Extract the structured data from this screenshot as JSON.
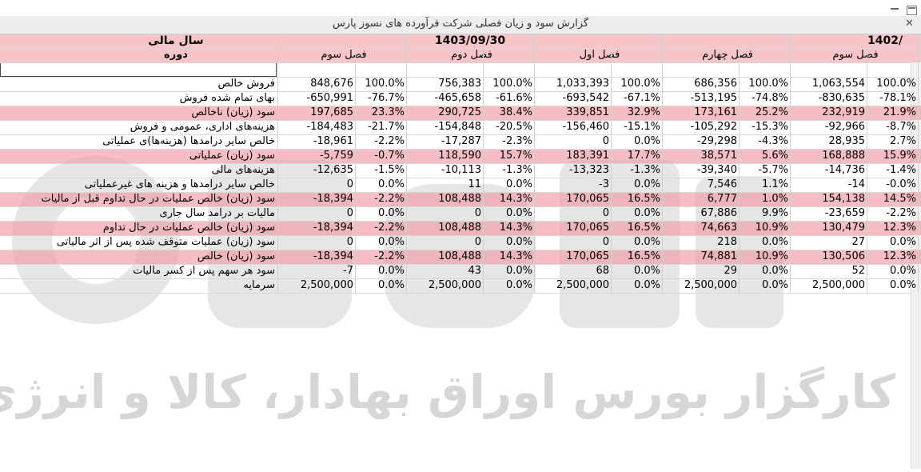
{
  "window": {
    "title": "گزارش سود و زیان فصلی شرکت فرآورده های نسوز پارس"
  },
  "header": {
    "fiscal_year_label": "سال مالی",
    "period_label": "دوره",
    "year_1403": "1403/09/30",
    "year_1402": "1402/",
    "periods": [
      "فصل سوم",
      "فصل دوم",
      "فصل اول",
      "فصل چهارم",
      "فصل سوم"
    ]
  },
  "rows": [
    {
      "label": "فروش خالص",
      "hl": false,
      "cells": [
        [
          "848,676",
          "100.0%"
        ],
        [
          "756,383",
          "100.0%"
        ],
        [
          "1,033,393",
          "100.0%"
        ],
        [
          "686,356",
          "100.0%"
        ],
        [
          "1,063,554",
          "100.0%"
        ]
      ]
    },
    {
      "label": "بهای تمام شده فروش",
      "hl": false,
      "cells": [
        [
          "-650,991",
          "-76.7%"
        ],
        [
          "-465,658",
          "-61.6%"
        ],
        [
          "-693,542",
          "-67.1%"
        ],
        [
          "-513,195",
          "-74.8%"
        ],
        [
          "-830,635",
          "-78.1%"
        ]
      ]
    },
    {
      "label": "سود (زیان) ناخالص",
      "hl": true,
      "cells": [
        [
          "197,685",
          "23.3%"
        ],
        [
          "290,725",
          "38.4%"
        ],
        [
          "339,851",
          "32.9%"
        ],
        [
          "173,161",
          "25.2%"
        ],
        [
          "232,919",
          "21.9%"
        ]
      ]
    },
    {
      "label": "هزینه‌های اداری، عمومی و فروش",
      "hl": false,
      "cells": [
        [
          "-184,483",
          "-21.7%"
        ],
        [
          "-154,848",
          "-20.5%"
        ],
        [
          "-156,460",
          "-15.1%"
        ],
        [
          "-105,292",
          "-15.3%"
        ],
        [
          "-92,966",
          "-8.7%"
        ]
      ]
    },
    {
      "label": "خالص سایر درآمدها (هزینه‌ها)ی عملیاتی",
      "hl": false,
      "cells": [
        [
          "-18,961",
          "-2.2%"
        ],
        [
          "-17,287",
          "-2.3%"
        ],
        [
          "0",
          "0.0%"
        ],
        [
          "-29,298",
          "-4.3%"
        ],
        [
          "28,935",
          "2.7%"
        ]
      ]
    },
    {
      "label": "سود (زیان) عملیاتی",
      "hl": true,
      "cells": [
        [
          "-5,759",
          "-0.7%"
        ],
        [
          "118,590",
          "15.7%"
        ],
        [
          "183,391",
          "17.7%"
        ],
        [
          "38,571",
          "5.6%"
        ],
        [
          "168,888",
          "15.9%"
        ]
      ]
    },
    {
      "label": "هزینه‌های مالی",
      "hl": false,
      "cells": [
        [
          "-12,635",
          "-1.5%"
        ],
        [
          "-10,113",
          "-1.3%"
        ],
        [
          "-13,323",
          "-1.3%"
        ],
        [
          "-39,340",
          "-5.7%"
        ],
        [
          "-14,736",
          "-1.4%"
        ]
      ]
    },
    {
      "label": "خالص سایر درآمدها و هزینه های غیرعملیاتی",
      "hl": false,
      "cells": [
        [
          "0",
          "0.0%"
        ],
        [
          "11",
          "0.0%"
        ],
        [
          "-3",
          "0.0%"
        ],
        [
          "7,546",
          "1.1%"
        ],
        [
          "-14",
          "-0.0%"
        ]
      ]
    },
    {
      "label": "سود (زیان) خالص عملیات در حال تداوم قبل از مالیات",
      "hl": true,
      "cells": [
        [
          "-18,394",
          "-2.2%"
        ],
        [
          "108,488",
          "14.3%"
        ],
        [
          "170,065",
          "16.5%"
        ],
        [
          "6,777",
          "1.0%"
        ],
        [
          "154,138",
          "14.5%"
        ]
      ]
    },
    {
      "label": "مالیات بر درآمد سال جاری",
      "hl": false,
      "cells": [
        [
          "0",
          "0.0%"
        ],
        [
          "0",
          "0.0%"
        ],
        [
          "0",
          "0.0%"
        ],
        [
          "67,886",
          "9.9%"
        ],
        [
          "-23,659",
          "-2.2%"
        ]
      ]
    },
    {
      "label": "سود (زیان) خالص عملیات در حال تداوم",
      "hl": true,
      "cells": [
        [
          "-18,394",
          "-2.2%"
        ],
        [
          "108,488",
          "14.3%"
        ],
        [
          "170,065",
          "16.5%"
        ],
        [
          "74,663",
          "10.9%"
        ],
        [
          "130,479",
          "12.3%"
        ]
      ]
    },
    {
      "label": "سود (زیان) عملیات متوقف شده پس از اثر مالیاتی",
      "hl": false,
      "cells": [
        [
          "0",
          "0.0%"
        ],
        [
          "0",
          "0.0%"
        ],
        [
          "0",
          "0.0%"
        ],
        [
          "218",
          "0.0%"
        ],
        [
          "27",
          "0.0%"
        ]
      ]
    },
    {
      "label": "سود (زیان) خالص",
      "hl": true,
      "cells": [
        [
          "-18,394",
          "-2.2%"
        ],
        [
          "108,488",
          "14.3%"
        ],
        [
          "170,065",
          "16.5%"
        ],
        [
          "74,881",
          "10.9%"
        ],
        [
          "130,506",
          "12.3%"
        ]
      ]
    },
    {
      "label": "سود هر سهم پس از کسر مالیات",
      "hl": false,
      "cells": [
        [
          "-7",
          "0.0%"
        ],
        [
          "43",
          "0.0%"
        ],
        [
          "68",
          "0.0%"
        ],
        [
          "29",
          "0.0%"
        ],
        [
          "52",
          "0.0%"
        ]
      ]
    },
    {
      "label": "سرمایه",
      "hl": false,
      "cells": [
        [
          "2,500,000",
          "0.0%"
        ],
        [
          "2,500,000",
          "0.0%"
        ],
        [
          "2,500,000",
          "0.0%"
        ],
        [
          "2,500,000",
          "0.0%"
        ],
        [
          "2,500,000",
          "0.0%"
        ]
      ]
    }
  ],
  "watermark": {
    "text": "کارگزار بورس اوراق بهادار، کالا و انرژی"
  },
  "colors": {
    "highlight_row": "#f4a3ab",
    "header_band": "#f7c4c8",
    "titlebar": "#ededed"
  }
}
